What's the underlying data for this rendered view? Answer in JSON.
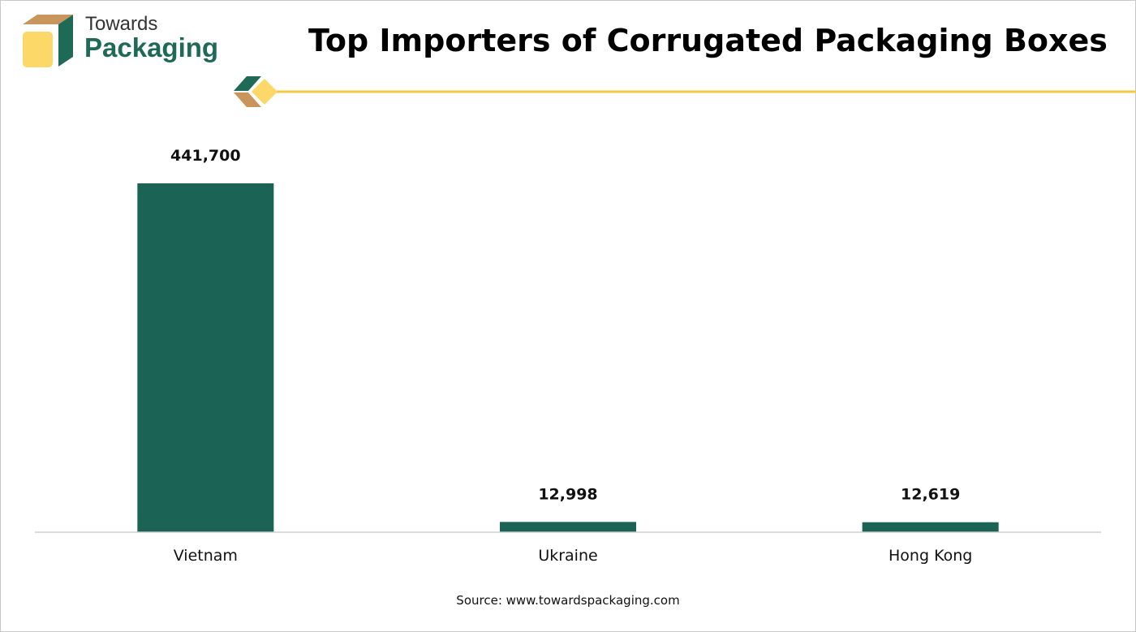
{
  "logo": {
    "line1": "Towards",
    "line2": "Packaging"
  },
  "colors": {
    "bar": "#1a6355",
    "accent_yellow": "#f5c842",
    "brand_green": "#1f6a57",
    "brand_tan": "#c8955c"
  },
  "chart_data": {
    "type": "bar",
    "title": "Top Importers of Corrugated Packaging Boxes",
    "categories": [
      "Vietnam",
      "Ukraine",
      "Hong Kong"
    ],
    "values": [
      441700,
      12998,
      12619
    ],
    "value_labels": [
      "441,700",
      "12,998",
      "12,619"
    ],
    "xlabel": "",
    "ylabel": "",
    "ylim": [
      0,
      441700
    ],
    "grid": false,
    "legend": "none"
  },
  "source": "Source: www.towardspackaging.com"
}
